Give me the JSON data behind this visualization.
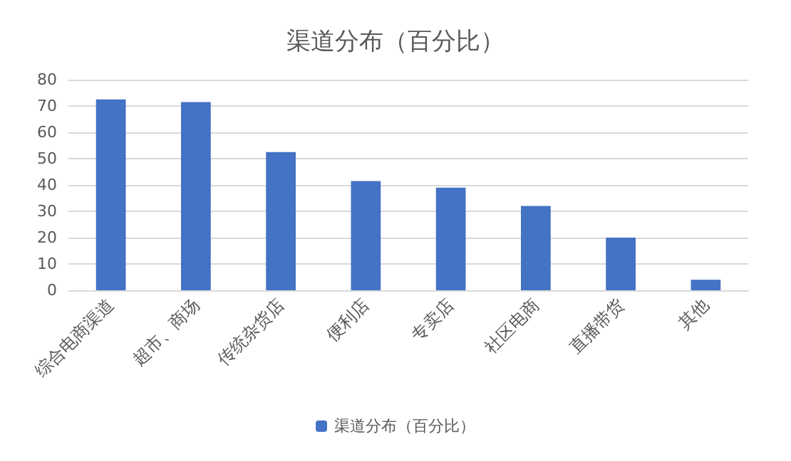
{
  "chart_data": {
    "type": "bar",
    "title": "渠道分布（百分比）",
    "categories": [
      "综合电商渠道",
      "超市、商场",
      "传统杂货店",
      "便利店",
      "专卖店",
      "社区电商",
      "直播带货",
      "其他"
    ],
    "series": [
      {
        "name": "渠道分布（百分比）",
        "color": "#4472c4",
        "values": [
          72.5,
          71.5,
          52.5,
          41.5,
          39,
          32,
          20,
          4
        ]
      }
    ],
    "ylim": [
      0,
      80
    ],
    "yticks": [
      0,
      10,
      20,
      30,
      40,
      50,
      60,
      70,
      80
    ],
    "grid": "y",
    "legend": "bottom"
  }
}
